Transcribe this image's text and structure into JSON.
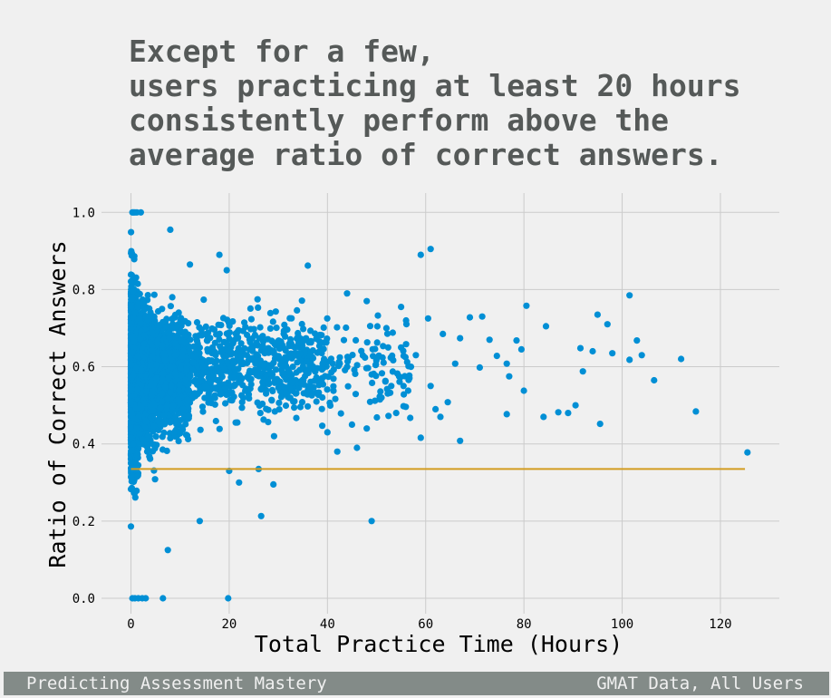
{
  "chart_data": {
    "type": "scatter",
    "title_lines": [
      "Except for a few,",
      "users practicing at least 20 hours",
      "consistently perform above the",
      "average ratio of correct answers."
    ],
    "xlabel": "Total Practice Time (Hours)",
    "ylabel": "Ratio of Correct Answers",
    "xlim": [
      -6,
      132
    ],
    "ylim": [
      -0.04,
      1.05
    ],
    "xticks": [
      0,
      20,
      40,
      60,
      80,
      100,
      120
    ],
    "xtick_labels": [
      "0",
      "20",
      "40",
      "60",
      "80",
      "100",
      "120"
    ],
    "yticks": [
      0.0,
      0.2,
      0.4,
      0.6,
      0.8,
      1.0
    ],
    "ytick_labels": [
      "0.0",
      "0.2",
      "0.4",
      "0.6",
      "0.8",
      "1.0"
    ],
    "grid": true,
    "colors": {
      "points": "#008fd5",
      "average_line": "#d39c20",
      "background": "#f0f0f0",
      "grid": "#cbcbcb"
    },
    "average_line": {
      "y": 0.335,
      "x": [
        0,
        125
      ]
    },
    "series": [
      {
        "points": [
          [
            0.3,
            1.0
          ],
          [
            0.5,
            1.0
          ],
          [
            0.8,
            1.0
          ],
          [
            1.2,
            1.0
          ],
          [
            2.0,
            1.0
          ],
          [
            0.3,
            0.0
          ],
          [
            0.8,
            0.0
          ],
          [
            1.5,
            0.0
          ],
          [
            2.3,
            0.0
          ],
          [
            3.0,
            0.0
          ],
          [
            6.5,
            0.0
          ],
          [
            19.8,
            0.0
          ],
          [
            8.0,
            0.955
          ],
          [
            18.0,
            0.89
          ],
          [
            19.5,
            0.85
          ],
          [
            12.0,
            0.865
          ],
          [
            7.5,
            0.125
          ],
          [
            14.0,
            0.2
          ],
          [
            26.5,
            0.213
          ],
          [
            49.0,
            0.2
          ],
          [
            22.0,
            0.3
          ],
          [
            29.0,
            0.295
          ],
          [
            26.0,
            0.335
          ],
          [
            20.0,
            0.33
          ],
          [
            59.0,
            0.89
          ],
          [
            61.0,
            0.905
          ],
          [
            36.0,
            0.862
          ],
          [
            44.0,
            0.79
          ],
          [
            48.0,
            0.77
          ],
          [
            55.0,
            0.755
          ],
          [
            60.5,
            0.725
          ],
          [
            59.0,
            0.416
          ],
          [
            67.0,
            0.408
          ],
          [
            63.5,
            0.685
          ],
          [
            64.5,
            0.508
          ],
          [
            63.0,
            0.47
          ],
          [
            61.0,
            0.55
          ],
          [
            62.0,
            0.49
          ],
          [
            69.0,
            0.728
          ],
          [
            71.5,
            0.73
          ],
          [
            67.0,
            0.674
          ],
          [
            66.0,
            0.608
          ],
          [
            71.0,
            0.598
          ],
          [
            73.0,
            0.67
          ],
          [
            74.5,
            0.628
          ],
          [
            76.5,
            0.608
          ],
          [
            77.0,
            0.575
          ],
          [
            76.5,
            0.477
          ],
          [
            78.5,
            0.668
          ],
          [
            79.5,
            0.645
          ],
          [
            80.5,
            0.758
          ],
          [
            80.0,
            0.538
          ],
          [
            84.5,
            0.705
          ],
          [
            84.0,
            0.47
          ],
          [
            87.0,
            0.482
          ],
          [
            89.0,
            0.48
          ],
          [
            90.5,
            0.5
          ],
          [
            91.5,
            0.648
          ],
          [
            92.0,
            0.588
          ],
          [
            94.0,
            0.64
          ],
          [
            95.0,
            0.735
          ],
          [
            95.5,
            0.452
          ],
          [
            97.0,
            0.71
          ],
          [
            98.0,
            0.635
          ],
          [
            101.5,
            0.785
          ],
          [
            101.5,
            0.618
          ],
          [
            103.0,
            0.668
          ],
          [
            104.0,
            0.63
          ],
          [
            106.5,
            0.565
          ],
          [
            112.0,
            0.62
          ],
          [
            115.0,
            0.484
          ],
          [
            125.5,
            0.378
          ],
          [
            57.0,
            0.6
          ],
          [
            55.0,
            0.65
          ],
          [
            52.0,
            0.7
          ],
          [
            50.0,
            0.62
          ],
          [
            53.0,
            0.55
          ],
          [
            45.0,
            0.45
          ],
          [
            48.0,
            0.44
          ],
          [
            42.0,
            0.38
          ],
          [
            46.0,
            0.39
          ],
          [
            40.0,
            0.43
          ],
          [
            56.0,
            0.72
          ],
          [
            58.0,
            0.63
          ],
          [
            54.0,
            0.48
          ],
          [
            51.0,
            0.52
          ],
          [
            49.0,
            0.58
          ]
        ]
      }
    ]
  },
  "footer": {
    "left": "Predicting Assessment Mastery",
    "right": "GMAT Data, All Users"
  }
}
